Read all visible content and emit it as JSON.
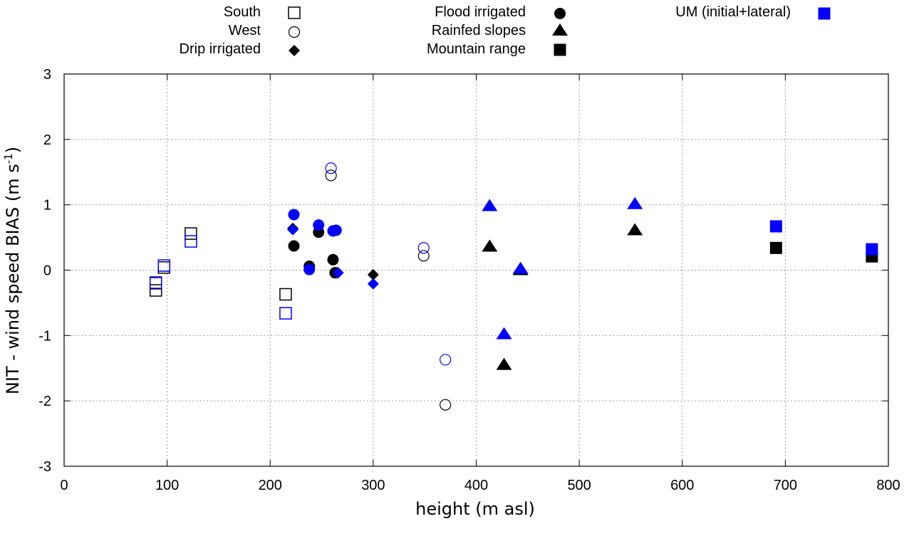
{
  "chart_data": {
    "type": "scatter",
    "title": "",
    "xlabel": "height (m asl)",
    "ylabel_main": "NIT - wind speed BIAS (m s",
    "ylabel_sup": "-1",
    "ylabel_close": ")",
    "xlim": [
      0,
      800
    ],
    "ylim": [
      -3,
      3
    ],
    "xticks": [
      0,
      100,
      200,
      300,
      400,
      500,
      600,
      700,
      800
    ],
    "yticks": [
      -3,
      -2,
      -1,
      0,
      1,
      2,
      3
    ],
    "grid": true,
    "colors": {
      "nit": "#000000",
      "um": "#0000ff",
      "grid": "#a0a0a0"
    },
    "legend": {
      "placement": "top",
      "entries": [
        {
          "label": "South",
          "marker": "open-square",
          "color": "#000000"
        },
        {
          "label": "West",
          "marker": "open-circle",
          "color": "#000000"
        },
        {
          "label": "Drip irrigated",
          "marker": "filled-diamond",
          "color": "#000000"
        },
        {
          "label": "Flood irrigated",
          "marker": "filled-circle",
          "color": "#000000"
        },
        {
          "label": "Rainfed slopes",
          "marker": "filled-triangle",
          "color": "#000000"
        },
        {
          "label": "Mountain range",
          "marker": "filled-square",
          "color": "#000000"
        },
        {
          "label": "UM (initial+lateral)",
          "marker": "filled-square",
          "color": "#0000ff"
        }
      ]
    },
    "series": [
      {
        "name": "South",
        "marker": "open-square",
        "model": "NIT",
        "x": [
          89,
          89,
          97,
          123,
          215
        ],
        "y": [
          -0.31,
          -0.2,
          0.04,
          0.56,
          -0.37
        ]
      },
      {
        "name": "South",
        "marker": "open-square",
        "model": "UM",
        "x": [
          89,
          97,
          123,
          215
        ],
        "y": [
          -0.19,
          0.07,
          0.44,
          -0.66
        ]
      },
      {
        "name": "West",
        "marker": "open-circle",
        "model": "NIT",
        "x": [
          259,
          349,
          370
        ],
        "y": [
          1.45,
          0.22,
          -2.06
        ]
      },
      {
        "name": "West",
        "marker": "open-circle",
        "model": "UM",
        "x": [
          259,
          349,
          370
        ],
        "y": [
          1.56,
          0.34,
          -1.37
        ]
      },
      {
        "name": "Drip irrigated",
        "marker": "filled-diamond",
        "model": "NIT",
        "x": [
          222,
          265,
          300
        ],
        "y": [
          0.64,
          -0.04,
          -0.07
        ]
      },
      {
        "name": "Drip irrigated",
        "marker": "filled-diamond",
        "model": "UM",
        "x": [
          222,
          266,
          300
        ],
        "y": [
          0.62,
          -0.04,
          -0.21
        ]
      },
      {
        "name": "Flood irrigated",
        "marker": "filled-circle",
        "model": "NIT",
        "x": [
          223,
          238,
          247,
          261,
          263
        ],
        "y": [
          0.37,
          0.06,
          0.58,
          0.16,
          -0.04
        ]
      },
      {
        "name": "Flood irrigated",
        "marker": "filled-circle",
        "model": "UM",
        "x": [
          223,
          238,
          247,
          261,
          264
        ],
        "y": [
          0.85,
          0.01,
          0.69,
          0.6,
          0.61
        ]
      },
      {
        "name": "Rainfed slopes",
        "marker": "filled-triangle",
        "model": "NIT",
        "x": [
          413,
          427,
          443,
          554
        ],
        "y": [
          0.36,
          -1.45,
          0.0,
          0.61
        ]
      },
      {
        "name": "Rainfed slopes",
        "marker": "filled-triangle",
        "model": "UM",
        "x": [
          413,
          427,
          443,
          554
        ],
        "y": [
          0.98,
          -0.98,
          0.02,
          1.01
        ]
      },
      {
        "name": "Mountain range",
        "marker": "filled-square",
        "model": "NIT",
        "x": [
          691,
          784
        ],
        "y": [
          0.34,
          0.21
        ]
      },
      {
        "name": "Mountain range",
        "marker": "filled-square",
        "model": "UM",
        "x": [
          691,
          784
        ],
        "y": [
          0.67,
          0.32
        ]
      }
    ]
  }
}
